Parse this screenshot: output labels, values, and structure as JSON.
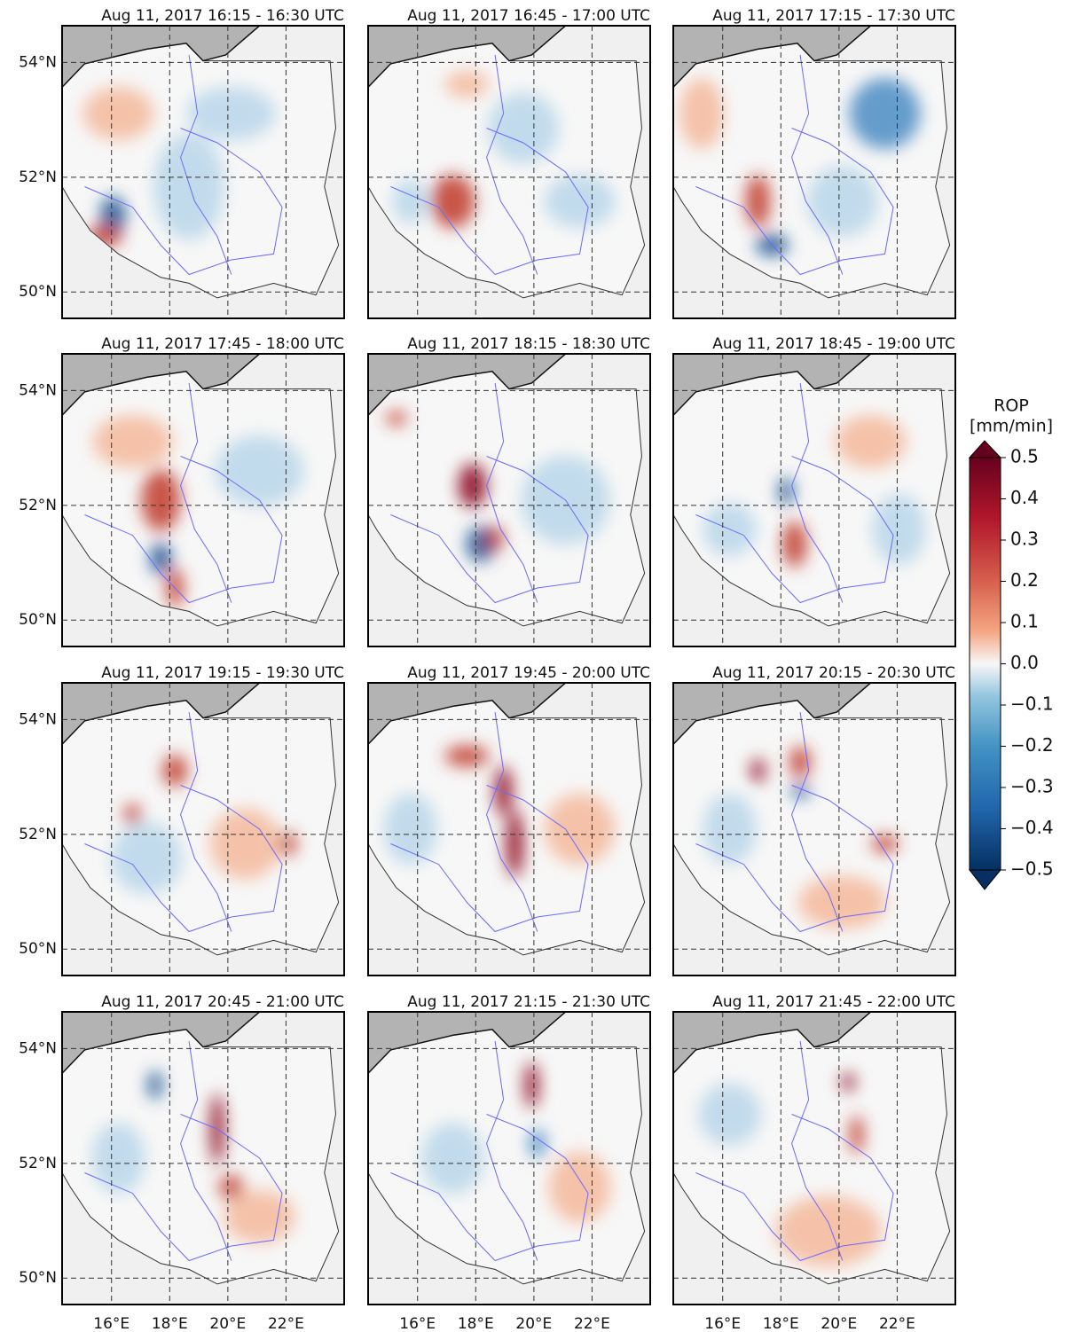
{
  "figure": {
    "panels": [
      {
        "title": "Aug 11, 2017 16:15 - 16:30 UTC"
      },
      {
        "title": "Aug 11, 2017 16:45 - 17:00 UTC"
      },
      {
        "title": "Aug 11, 2017 17:15 - 17:30 UTC"
      },
      {
        "title": "Aug 11, 2017 17:45 - 18:00 UTC"
      },
      {
        "title": "Aug 11, 2017 18:15 - 18:30 UTC"
      },
      {
        "title": "Aug 11, 2017 18:45 - 19:00 UTC"
      },
      {
        "title": "Aug 11, 2017 19:15 - 19:30 UTC"
      },
      {
        "title": "Aug 11, 2017 19:45 - 20:00 UTC"
      },
      {
        "title": "Aug 11, 2017 20:15 - 20:30 UTC"
      },
      {
        "title": "Aug 11, 2017 20:45 - 21:00 UTC"
      },
      {
        "title": "Aug 11, 2017 21:15 - 21:30 UTC"
      },
      {
        "title": "Aug 11, 2017 21:45 - 22:00 UTC"
      }
    ],
    "xlim": [
      14.3,
      24.0
    ],
    "ylim": [
      49.54,
      54.64
    ],
    "xticks": [
      {
        "value": 16,
        "label": "16°E"
      },
      {
        "value": 18,
        "label": "18°E"
      },
      {
        "value": 20,
        "label": "20°E"
      },
      {
        "value": 22,
        "label": "22°E"
      }
    ],
    "yticks": [
      {
        "value": 54,
        "label": "54°N"
      },
      {
        "value": 52,
        "label": "52°N"
      },
      {
        "value": 50,
        "label": "50°N"
      }
    ],
    "colorbar": {
      "label_lines": [
        "ROP",
        "[mm/min]"
      ],
      "lim": [
        -0.5,
        0.5
      ],
      "ticks": [
        {
          "value": 0.5,
          "label": "0.5"
        },
        {
          "value": 0.4,
          "label": "0.4"
        },
        {
          "value": 0.3,
          "label": "0.3"
        },
        {
          "value": 0.2,
          "label": "0.2"
        },
        {
          "value": 0.1,
          "label": "0.1"
        },
        {
          "value": 0,
          "label": "0.0"
        },
        {
          "value": -0.1,
          "label": "−0.1"
        },
        {
          "value": -0.2,
          "label": "−0.2"
        },
        {
          "value": -0.3,
          "label": "−0.3"
        },
        {
          "value": -0.4,
          "label": "−0.4"
        },
        {
          "value": -0.5,
          "label": "−0.5"
        }
      ]
    }
  }
}
